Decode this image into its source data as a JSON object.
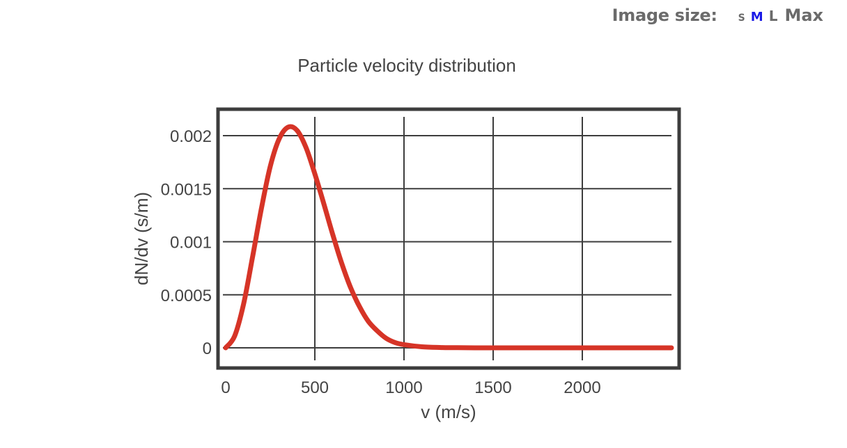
{
  "header": {
    "image_size_label": "Image size:",
    "size_options": [
      {
        "label": "S",
        "active": false
      },
      {
        "label": "M",
        "active": true
      },
      {
        "label": "L",
        "active": false
      },
      {
        "label": "Max",
        "active": false
      }
    ],
    "active_color": "#1a1ae6"
  },
  "chart_data": {
    "type": "line",
    "title": "Particle velocity distribution",
    "xlabel": "v (m/s)",
    "ylabel": "dN/dv (s/m)",
    "xlim": [
      0,
      2500
    ],
    "ylim": [
      0,
      0.0022
    ],
    "x_ticks": [
      0,
      500,
      1000,
      1500,
      2000
    ],
    "x_tick_labels": [
      "0",
      "500",
      "1000",
      "1500",
      "2000"
    ],
    "y_ticks": [
      0,
      0.0005,
      0.001,
      0.0015,
      0.002
    ],
    "y_tick_labels": [
      "0",
      "0.0005",
      "0.001",
      "0.0015",
      "0.002"
    ],
    "grid": true,
    "line_color": "#d63427",
    "series": [
      {
        "x": [
          0,
          50,
          100,
          150,
          200,
          250,
          300,
          350,
          400,
          450,
          500,
          550,
          600,
          650,
          700,
          750,
          800,
          850,
          900,
          950,
          1000,
          1100,
          1200,
          1300,
          1400,
          1500,
          1750,
          2000,
          2250,
          2500
        ],
        "y": [
          0,
          0.00011,
          0.00041,
          0.00085,
          0.00131,
          0.00171,
          0.00197,
          0.00208,
          0.00205,
          0.00189,
          0.00164,
          0.00136,
          0.00107,
          0.0008,
          0.00057,
          0.00039,
          0.00025,
          0.00016,
          9e-05,
          5e-05,
          3e-05,
          1e-05,
          3e-06,
          1e-06,
          0,
          0,
          0,
          0,
          0,
          0
        ]
      }
    ]
  }
}
